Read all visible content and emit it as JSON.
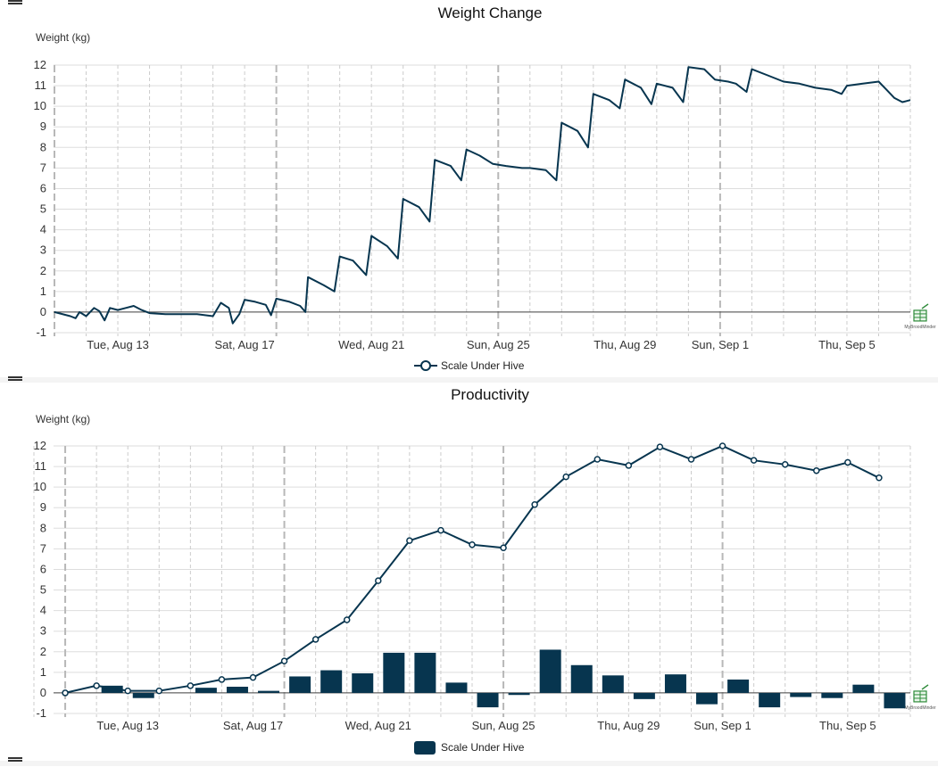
{
  "colors": {
    "series": "#07354f",
    "grid": "#dddddd",
    "vgrid": "#cccccc",
    "zero_line": "#444444",
    "watermark": "#2e8b3a"
  },
  "watermark": {
    "icon": "spreadsheet-logo-icon",
    "text": "MyBroodMinder"
  },
  "chart_data": [
    {
      "type": "line",
      "title": "Weight Change",
      "ylabel": "Weight (kg)",
      "xlabel": "",
      "ylim": [
        -1,
        12
      ],
      "yticks": [
        -1,
        0,
        1,
        2,
        3,
        4,
        5,
        6,
        7,
        8,
        9,
        10,
        11,
        12
      ],
      "x_start": "Aug 11",
      "x_end": "Sep 7",
      "xticks": [
        {
          "date": "Aug 13",
          "label": "Tue, Aug 13"
        },
        {
          "date": "Aug 17",
          "label": "Sat, Aug 17"
        },
        {
          "date": "Aug 21",
          "label": "Wed, Aug 21"
        },
        {
          "date": "Aug 25",
          "label": "Sun, Aug 25"
        },
        {
          "date": "Aug 29",
          "label": "Thu, Aug 29"
        },
        {
          "date": "Sep 1",
          "label": "Sun, Sep 1"
        },
        {
          "date": "Sep 5",
          "label": "Thu, Sep 5"
        }
      ],
      "week_boundaries": [
        "Aug 11",
        "Aug 18",
        "Aug 25",
        "Sep 1"
      ],
      "grid": true,
      "legend": {
        "position": "bottom-center",
        "marker": "circle"
      },
      "series": [
        {
          "name": "Scale Under Hive",
          "points": [
            [
              "Aug 11 00:00",
              0.0
            ],
            [
              "Aug 11 12:00",
              -0.2
            ],
            [
              "Aug 11 16:00",
              -0.3
            ],
            [
              "Aug 11 19:00",
              0.0
            ],
            [
              "Aug 12 00:00",
              -0.2
            ],
            [
              "Aug 12 06:00",
              0.2
            ],
            [
              "Aug 12 10:00",
              0.05
            ],
            [
              "Aug 12 14:00",
              -0.4
            ],
            [
              "Aug 12 18:00",
              0.2
            ],
            [
              "Aug 13 00:00",
              0.1
            ],
            [
              "Aug 13 06:00",
              0.2
            ],
            [
              "Aug 13 12:00",
              0.3
            ],
            [
              "Aug 13 18:00",
              0.1
            ],
            [
              "Aug 14 00:00",
              -0.05
            ],
            [
              "Aug 14 12:00",
              -0.1
            ],
            [
              "Aug 15 00:00",
              -0.1
            ],
            [
              "Aug 15 12:00",
              -0.1
            ],
            [
              "Aug 16 00:00",
              -0.2
            ],
            [
              "Aug 16 06:00",
              0.45
            ],
            [
              "Aug 16 12:00",
              0.2
            ],
            [
              "Aug 16 15:00",
              -0.55
            ],
            [
              "Aug 16 20:00",
              -0.1
            ],
            [
              "Aug 17 00:00",
              0.6
            ],
            [
              "Aug 17 08:00",
              0.5
            ],
            [
              "Aug 17 16:00",
              0.35
            ],
            [
              "Aug 17 20:00",
              -0.15
            ],
            [
              "Aug 18 00:00",
              0.65
            ],
            [
              "Aug 18 10:00",
              0.5
            ],
            [
              "Aug 18 18:00",
              0.3
            ],
            [
              "Aug 18 22:00",
              0.0
            ],
            [
              "Aug 19 00:00",
              1.7
            ],
            [
              "Aug 19 12:00",
              1.3
            ],
            [
              "Aug 19 20:00",
              1.0
            ],
            [
              "Aug 20 00:00",
              2.7
            ],
            [
              "Aug 20 10:00",
              2.5
            ],
            [
              "Aug 20 20:00",
              1.8
            ],
            [
              "Aug 21 00:00",
              3.7
            ],
            [
              "Aug 21 12:00",
              3.2
            ],
            [
              "Aug 21 20:00",
              2.6
            ],
            [
              "Aug 22 00:00",
              5.5
            ],
            [
              "Aug 22 12:00",
              5.1
            ],
            [
              "Aug 22 20:00",
              4.4
            ],
            [
              "Aug 23 00:00",
              7.4
            ],
            [
              "Aug 23 12:00",
              7.1
            ],
            [
              "Aug 23 20:00",
              6.4
            ],
            [
              "Aug 24 00:00",
              7.9
            ],
            [
              "Aug 24 10:00",
              7.6
            ],
            [
              "Aug 24 20:00",
              7.2
            ],
            [
              "Aug 25 06:00",
              7.1
            ],
            [
              "Aug 25 18:00",
              7.0
            ],
            [
              "Aug 26 00:00",
              7.0
            ],
            [
              "Aug 26 12:00",
              6.9
            ],
            [
              "Aug 26 20:00",
              6.4
            ],
            [
              "Aug 27 00:00",
              9.2
            ],
            [
              "Aug 27 12:00",
              8.8
            ],
            [
              "Aug 27 20:00",
              8.0
            ],
            [
              "Aug 28 00:00",
              10.6
            ],
            [
              "Aug 28 12:00",
              10.3
            ],
            [
              "Aug 28 20:00",
              9.9
            ],
            [
              "Aug 29 00:00",
              11.3
            ],
            [
              "Aug 29 12:00",
              10.9
            ],
            [
              "Aug 29 20:00",
              10.1
            ],
            [
              "Aug 30 00:00",
              11.1
            ],
            [
              "Aug 30 12:00",
              10.9
            ],
            [
              "Aug 30 20:00",
              10.2
            ],
            [
              "Aug 31 00:00",
              11.9
            ],
            [
              "Aug 31 12:00",
              11.8
            ],
            [
              "Aug 31 20:00",
              11.3
            ],
            [
              "Sep 1 06:00",
              11.2
            ],
            [
              "Sep 1 12:00",
              11.1
            ],
            [
              "Sep 1 20:00",
              10.7
            ],
            [
              "Sep 2 00:00",
              11.8
            ],
            [
              "Sep 2 12:00",
              11.5
            ],
            [
              "Sep 3 00:00",
              11.2
            ],
            [
              "Sep 3 12:00",
              11.1
            ],
            [
              "Sep 4 00:00",
              10.9
            ],
            [
              "Sep 4 12:00",
              10.8
            ],
            [
              "Sep 4 20:00",
              10.6
            ],
            [
              "Sep 5 00:00",
              11.0
            ],
            [
              "Sep 5 12:00",
              11.1
            ],
            [
              "Sep 6 00:00",
              11.2
            ],
            [
              "Sep 6 06:00",
              10.8
            ],
            [
              "Sep 6 12:00",
              10.4
            ],
            [
              "Sep 6 18:00",
              10.2
            ],
            [
              "Sep 7 00:00",
              10.3
            ]
          ]
        }
      ]
    },
    {
      "type": "bar",
      "title": "Productivity",
      "ylabel": "Weight (kg)",
      "xlabel": "",
      "ylim": [
        -1,
        12
      ],
      "yticks": [
        -1,
        0,
        1,
        2,
        3,
        4,
        5,
        6,
        7,
        8,
        9,
        10,
        11,
        12
      ],
      "x_start": "Aug 10",
      "x_end": "Sep 7",
      "xticks": [
        {
          "date": "Aug 13",
          "label": "Tue, Aug 13"
        },
        {
          "date": "Aug 17",
          "label": "Sat, Aug 17"
        },
        {
          "date": "Aug 21",
          "label": "Wed, Aug 21"
        },
        {
          "date": "Aug 25",
          "label": "Sun, Aug 25"
        },
        {
          "date": "Aug 29",
          "label": "Thu, Aug 29"
        },
        {
          "date": "Sep 1",
          "label": "Sun, Sep 1"
        },
        {
          "date": "Sep 5",
          "label": "Thu, Sep 5"
        }
      ],
      "week_boundaries": [
        "Aug 11",
        "Aug 18",
        "Aug 25",
        "Sep 1"
      ],
      "grid": true,
      "legend": {
        "position": "bottom-center",
        "marker": "rect"
      },
      "categories": [
        "Aug 11",
        "Aug 12",
        "Aug 13",
        "Aug 14",
        "Aug 15",
        "Aug 16",
        "Aug 17",
        "Aug 18",
        "Aug 19",
        "Aug 20",
        "Aug 21",
        "Aug 22",
        "Aug 23",
        "Aug 24",
        "Aug 25",
        "Aug 26",
        "Aug 27",
        "Aug 28",
        "Aug 29",
        "Aug 30",
        "Aug 31",
        "Sep 1",
        "Sep 2",
        "Sep 3",
        "Sep 4",
        "Sep 5",
        "Sep 6"
      ],
      "series": [
        {
          "name": "Scale Under Hive",
          "values": [
            0.0,
            0.35,
            -0.25,
            0.0,
            0.25,
            0.3,
            0.1,
            0.8,
            1.1,
            0.95,
            1.95,
            1.95,
            0.5,
            -0.7,
            -0.1,
            2.1,
            1.35,
            0.85,
            -0.3,
            0.9,
            -0.55,
            0.65,
            -0.7,
            -0.2,
            -0.25,
            0.4,
            -0.75
          ]
        }
      ],
      "cumulative": [
        0.0,
        0.35,
        0.1,
        0.1,
        0.35,
        0.65,
        0.75,
        1.55,
        2.6,
        3.55,
        5.45,
        7.4,
        7.9,
        7.2,
        7.05,
        9.15,
        10.5,
        11.35,
        11.05,
        11.95,
        11.35,
        12.0,
        11.3,
        11.1,
        10.8,
        11.2,
        10.45
      ]
    }
  ]
}
